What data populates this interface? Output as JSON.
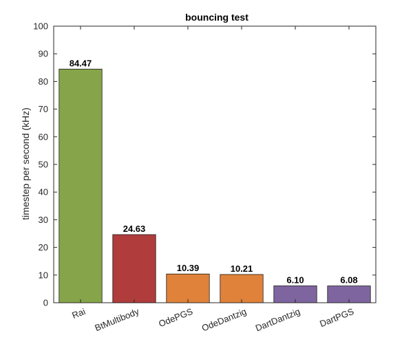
{
  "chart_data": {
    "type": "bar",
    "title": "bouncing test",
    "xlabel": "",
    "ylabel": "timestep per second (kHz)",
    "categories": [
      "Rai",
      "BtMultibody",
      "OdePGS",
      "OdeDantzig",
      "DartDantzig",
      "DartPGS"
    ],
    "values": [
      84.47,
      24.63,
      10.39,
      10.21,
      6.1,
      6.08
    ],
    "value_labels": [
      "84.47",
      "24.63",
      "10.39",
      "10.21",
      "6.10",
      "6.08"
    ],
    "colors": [
      "#86A54A",
      "#B03C3C",
      "#E0823A",
      "#E0823A",
      "#7F65A0",
      "#7F65A0"
    ],
    "ylim": [
      0,
      100
    ],
    "yticks": [
      0,
      10,
      20,
      30,
      40,
      50,
      60,
      70,
      80,
      90,
      100
    ],
    "ytick_labels": [
      "0",
      "10",
      "20",
      "30",
      "40",
      "50",
      "60",
      "70",
      "80",
      "90",
      "100"
    ],
    "grid": false,
    "legend": "none"
  }
}
